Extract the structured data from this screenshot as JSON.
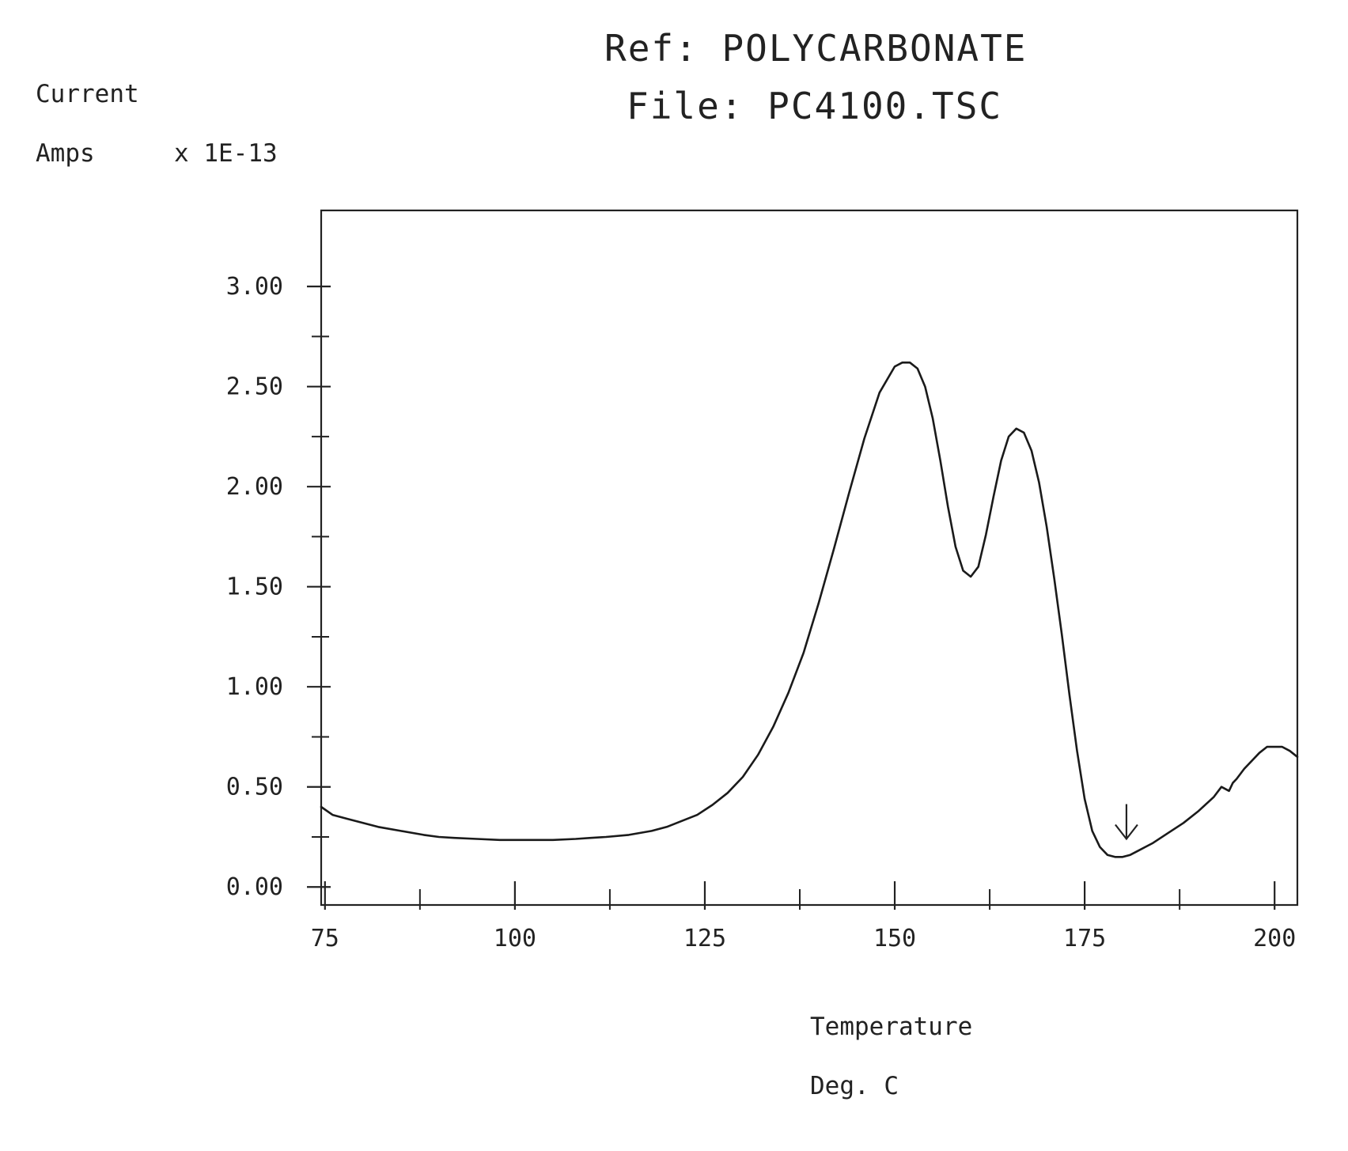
{
  "chart_data": {
    "type": "line",
    "title_lines": [
      "Ref:  POLYCARBONATE",
      "File:  PC4100.TSC"
    ],
    "ylabel_lines": [
      "Current",
      "Amps"
    ],
    "yunit": "x 1E-13",
    "xlabel_lines": [
      "Temperature",
      "Deg. C"
    ],
    "xlim": [
      74.5,
      203
    ],
    "ylim": [
      -0.09,
      3.38
    ],
    "x_ticks": [
      {
        "value": 75,
        "label": "75"
      },
      {
        "value": 100,
        "label": "100"
      },
      {
        "value": 125,
        "label": "125"
      },
      {
        "value": 150,
        "label": "150"
      },
      {
        "value": 175,
        "label": "175"
      },
      {
        "value": 200,
        "label": "200"
      }
    ],
    "x_minor_ticks": [
      87.5,
      112.5,
      137.5,
      162.5,
      187.5
    ],
    "y_ticks": [
      {
        "value": 0.0,
        "label": "0.00"
      },
      {
        "value": 0.5,
        "label": "0.50"
      },
      {
        "value": 1.0,
        "label": "1.00"
      },
      {
        "value": 1.5,
        "label": "1.50"
      },
      {
        "value": 2.0,
        "label": "2.00"
      },
      {
        "value": 2.5,
        "label": "2.50"
      },
      {
        "value": 3.0,
        "label": "3.00"
      }
    ],
    "y_minor_ticks": [
      0.25,
      0.75,
      1.25,
      1.75,
      2.25,
      2.75
    ],
    "grid": false,
    "series": [
      {
        "x": [
          74.5,
          76,
          78,
          80,
          82,
          85,
          88,
          90,
          92,
          95,
          98,
          100,
          102,
          105,
          108,
          110,
          112,
          115,
          118,
          120,
          122,
          124,
          126,
          128,
          130,
          132,
          134,
          136,
          138,
          140,
          142,
          144,
          146,
          148,
          150,
          151,
          152,
          153,
          154,
          155,
          156,
          157,
          158,
          159,
          160,
          161,
          162,
          163,
          164,
          165,
          166,
          167,
          168,
          169,
          170,
          171,
          172,
          173,
          174,
          175,
          176,
          177,
          178,
          179,
          180,
          181,
          182,
          183,
          184,
          186,
          188,
          190,
          192,
          193,
          194,
          194.5,
          195,
          196,
          198,
          199,
          200,
          201,
          202,
          203
        ],
        "y": [
          0.4,
          0.36,
          0.34,
          0.32,
          0.3,
          0.28,
          0.26,
          0.25,
          0.245,
          0.24,
          0.235,
          0.235,
          0.235,
          0.235,
          0.24,
          0.245,
          0.25,
          0.26,
          0.28,
          0.3,
          0.33,
          0.36,
          0.41,
          0.47,
          0.55,
          0.66,
          0.8,
          0.97,
          1.17,
          1.42,
          1.69,
          1.97,
          2.24,
          2.47,
          2.6,
          2.62,
          2.62,
          2.59,
          2.5,
          2.34,
          2.13,
          1.9,
          1.7,
          1.58,
          1.55,
          1.6,
          1.76,
          1.95,
          2.13,
          2.25,
          2.29,
          2.27,
          2.18,
          2.02,
          1.8,
          1.54,
          1.26,
          0.96,
          0.68,
          0.44,
          0.28,
          0.2,
          0.16,
          0.15,
          0.15,
          0.16,
          0.18,
          0.2,
          0.22,
          0.27,
          0.32,
          0.38,
          0.45,
          0.5,
          0.48,
          0.52,
          0.54,
          0.59,
          0.67,
          0.7,
          0.7,
          0.7,
          0.68,
          0.65
        ]
      }
    ],
    "annotations": [
      {
        "type": "arrow",
        "x": 180.5,
        "y": 0.24,
        "direction": "down"
      }
    ]
  }
}
